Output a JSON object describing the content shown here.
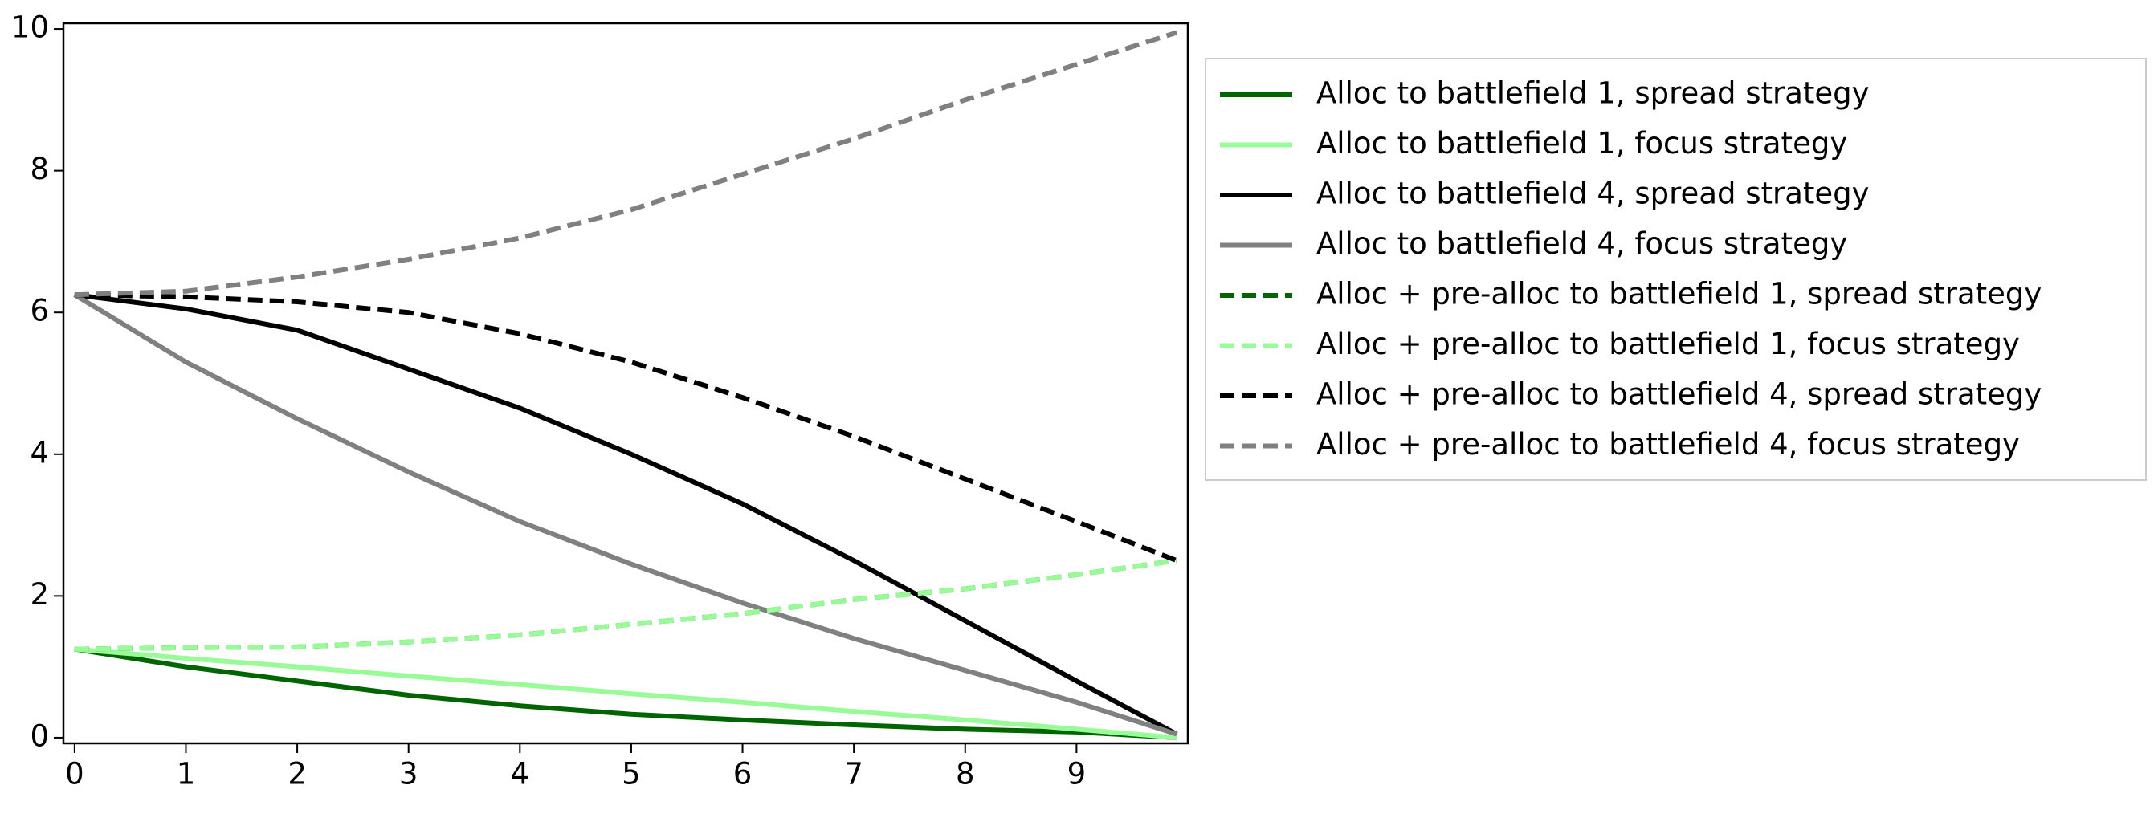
{
  "chart_data": {
    "type": "line",
    "x": [
      0,
      1,
      2,
      3,
      4,
      5,
      6,
      7,
      8,
      9,
      9.9
    ],
    "xlim": [
      -0.1,
      10.0
    ],
    "xticks": [
      0,
      1,
      2,
      3,
      4,
      5,
      6,
      7,
      8,
      9
    ],
    "ylim": [
      -0.08,
      10.08
    ],
    "yticks": [
      0,
      2,
      4,
      6,
      8,
      10
    ],
    "legend": "outside right",
    "series": [
      {
        "name": "Alloc to battlefield 1, spread strategy",
        "color": "#006400",
        "style": "solid",
        "values": [
          1.25,
          1.0,
          0.8,
          0.6,
          0.45,
          0.33,
          0.25,
          0.18,
          0.12,
          0.08,
          0.0
        ]
      },
      {
        "name": "Alloc to battlefield 1, focus strategy",
        "color": "#98fb98",
        "style": "solid",
        "values": [
          1.25,
          1.12,
          1.0,
          0.87,
          0.75,
          0.62,
          0.5,
          0.37,
          0.25,
          0.12,
          0.0
        ]
      },
      {
        "name": "Alloc to battlefield 4, spread strategy",
        "color": "#000000",
        "style": "solid",
        "values": [
          6.25,
          6.05,
          5.75,
          5.2,
          4.65,
          4.0,
          3.3,
          2.5,
          1.65,
          0.8,
          0.05
        ]
      },
      {
        "name": "Alloc to battlefield 4, focus strategy",
        "color": "#808080",
        "style": "solid",
        "values": [
          6.25,
          5.3,
          4.5,
          3.75,
          3.05,
          2.45,
          1.9,
          1.4,
          0.95,
          0.5,
          0.05
        ]
      },
      {
        "name": "Alloc + pre-alloc to battlefield 1, spread strategy",
        "color": "#006400",
        "style": "dashed",
        "values": [
          1.25,
          1.27,
          1.28,
          1.35,
          1.45,
          1.6,
          1.75,
          1.95,
          2.1,
          2.3,
          2.5
        ]
      },
      {
        "name": "Alloc + pre-alloc to battlefield 1, focus strategy",
        "color": "#98fb98",
        "style": "dashed",
        "values": [
          1.25,
          1.27,
          1.28,
          1.35,
          1.45,
          1.6,
          1.75,
          1.95,
          2.1,
          2.3,
          2.5
        ]
      },
      {
        "name": "Alloc + pre-alloc to battlefield 4, spread strategy",
        "color": "#000000",
        "style": "dashed",
        "values": [
          6.25,
          6.22,
          6.15,
          6.0,
          5.7,
          5.3,
          4.8,
          4.25,
          3.65,
          3.05,
          2.5
        ]
      },
      {
        "name": "Alloc + pre-alloc to battlefield 4, focus strategy",
        "color": "#808080",
        "style": "dashed",
        "values": [
          6.25,
          6.3,
          6.5,
          6.75,
          7.05,
          7.45,
          7.95,
          8.45,
          9.0,
          9.5,
          9.95
        ]
      }
    ]
  }
}
